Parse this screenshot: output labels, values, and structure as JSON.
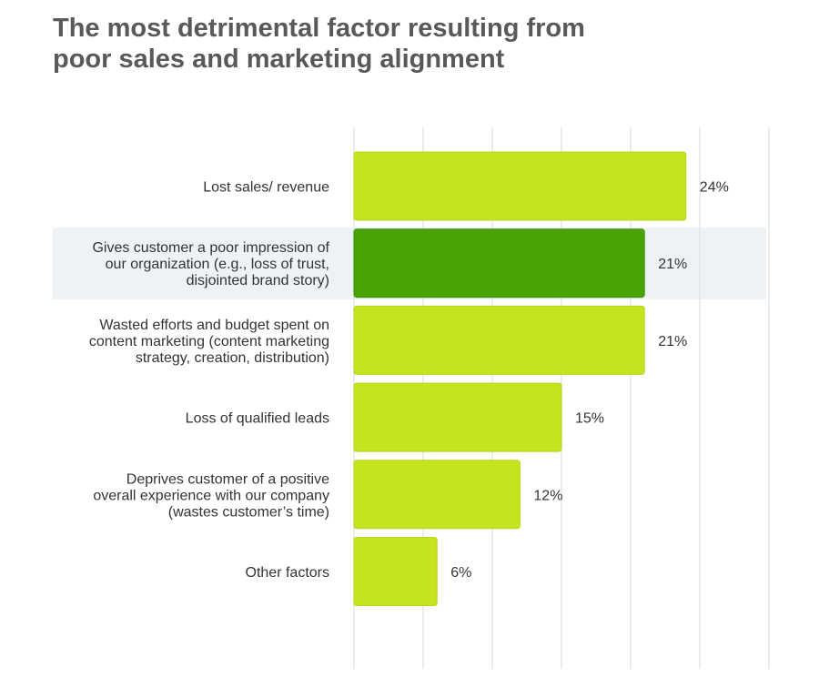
{
  "title_lines": [
    "The most detrimental factor resulting from",
    "poor sales and marketing alignment"
  ],
  "colors": {
    "bar": "#c6e31f",
    "bar_highlight": "#4aa304",
    "highlight_band": "#eef2f5",
    "grid": "#e0e0e0",
    "text": "#333333",
    "title": "#595959"
  },
  "chart_data": {
    "type": "bar",
    "orientation": "horizontal",
    "title": "The most detrimental factor resulting from poor sales and marketing alignment",
    "categories": [
      [
        "Lost sales/ revenue"
      ],
      [
        "Gives customer a poor impression of",
        "our organization (e.g., loss of trust,",
        "disjointed brand story)"
      ],
      [
        "Wasted efforts and budget spent on",
        "content marketing (content marketing",
        "strategy, creation, distribution)"
      ],
      [
        "Loss of qualified leads"
      ],
      [
        "Deprives customer of a positive",
        "overall experience with our company",
        "(wastes customer’s time)"
      ],
      [
        "Other factors"
      ]
    ],
    "values": [
      24,
      21,
      21,
      15,
      12,
      6
    ],
    "value_labels": [
      "24%",
      "21%",
      "21%",
      "15%",
      "12%",
      "6%"
    ],
    "highlight_index": 1,
    "xlim": [
      0,
      30
    ],
    "grid": true,
    "legend": "none"
  }
}
